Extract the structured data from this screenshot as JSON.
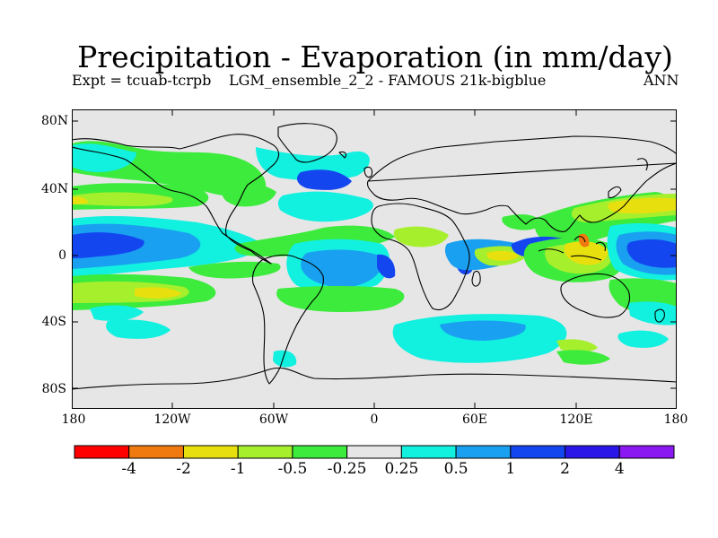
{
  "title": "Precipitation - Evaporation (in mm/day)",
  "subtitle_left": "Expt = tcuab-tcrpb",
  "subtitle_mid": "LGM_ensemble_2_2 - FAMOUS 21k-bigblue",
  "subtitle_right": "ANN",
  "y_labels": [
    "80N",
    "40N",
    "0",
    "40S",
    "80S"
  ],
  "x_labels": [
    "180",
    "120W",
    "60W",
    "0",
    "60E",
    "120E",
    "180"
  ],
  "colorbar": {
    "labels": [
      "-4",
      "-2",
      "-1",
      "-0.5",
      "-0.25",
      "0.25",
      "0.5",
      "1",
      "2",
      "4"
    ],
    "colors": [
      "#ff0000",
      "#f07a10",
      "#e8e00e",
      "#a6ef2c",
      "#3ceb3c",
      "#e6e6e6",
      "#12f0e0",
      "#1aa0f0",
      "#1446f0",
      "#2a16e6",
      "#8a18f0"
    ]
  }
}
